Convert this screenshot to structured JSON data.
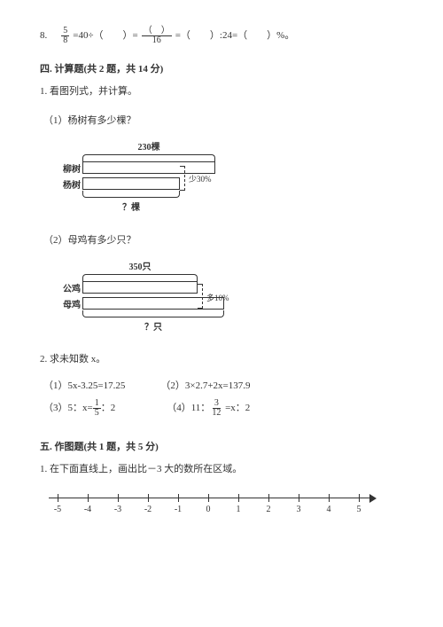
{
  "q8": {
    "num": "8.",
    "frac_num": "5",
    "frac_den": "8",
    "seg1": "=40÷（　　）=",
    "mid_num": "（　）",
    "mid_den": "16",
    "seg2": "=（　　）:24=（　　）%。"
  },
  "section4": {
    "title": "四. 计算题(共 2 题，共 14 分)",
    "q1": {
      "prompt": "1. 看图列式，并计算。",
      "p1": {
        "label": "（1）杨树有多少棵？",
        "top": "230棵",
        "row1": "柳树",
        "row2": "杨树",
        "diff": "少30%",
        "bottom": "？棵"
      },
      "p2": {
        "label": "（2）母鸡有多少只？",
        "top": "350只",
        "row1": "公鸡",
        "row2": "母鸡",
        "diff": "多10%",
        "bottom": "？只"
      }
    },
    "q2": {
      "prompt": "2. 求未知数 x。",
      "items": {
        "i1": "（1）5x-3.25=17.25",
        "i2": "（2）3×2.7+2x=137.9",
        "i3_a": "（3）5：x=",
        "i3_frac_n": "1",
        "i3_frac_d": "5",
        "i3_b": "：2",
        "i4_a": "（4）11：",
        "i4_frac_n": "3",
        "i4_frac_d": "12",
        "i4_b": " =x：2"
      }
    }
  },
  "section5": {
    "title": "五. 作图题(共 1 题，共 5 分)",
    "q1": "1. 在下面直线上，画出比－3 大的数所在区域。"
  },
  "numberline": {
    "min": -5,
    "max": 5,
    "labels": [
      "-5",
      "-4",
      "-3",
      "-2",
      "-1",
      "0",
      "1",
      "2",
      "3",
      "4",
      "5"
    ]
  }
}
